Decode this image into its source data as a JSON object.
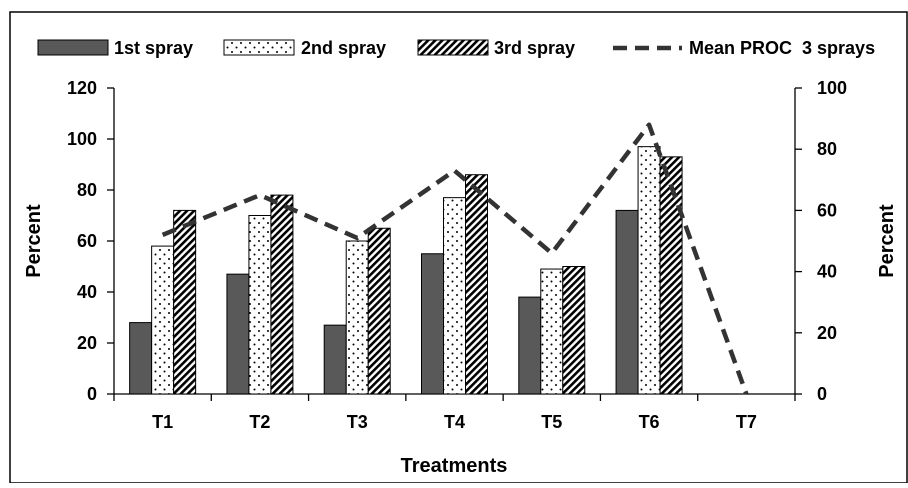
{
  "chart_data": {
    "type": "bar",
    "categories": [
      "T1",
      "T2",
      "T3",
      "T4",
      "T5",
      "T6",
      "T7"
    ],
    "series": [
      {
        "name": "1st spray",
        "kind": "bar",
        "axis": "left",
        "pattern": "solid",
        "color": "#595959",
        "values": [
          28,
          47,
          27,
          55,
          38,
          72,
          0
        ]
      },
      {
        "name": "2nd spray",
        "kind": "bar",
        "axis": "left",
        "pattern": "dots",
        "color": "#ffffff",
        "values": [
          58,
          70,
          60,
          77,
          49,
          97,
          0
        ]
      },
      {
        "name": "3rd spray",
        "kind": "bar",
        "axis": "left",
        "pattern": "diagonal",
        "color": "#000000",
        "values": [
          72,
          78,
          65,
          86,
          50,
          93,
          0
        ]
      },
      {
        "name": "Mean PROC  3 sprays",
        "kind": "line",
        "axis": "right",
        "style": "dashed",
        "color": "#333333",
        "values": [
          52,
          65,
          51,
          73,
          46,
          88,
          0
        ]
      }
    ],
    "xlabel": "Treatments",
    "ylabel": "Percent",
    "y2label": "Percent",
    "ylim": [
      0,
      120
    ],
    "y2lim": [
      0,
      100
    ],
    "yticks": [
      "0",
      "20",
      "40",
      "60",
      "80",
      "100",
      "120"
    ],
    "y2ticks": [
      "0",
      "20",
      "40",
      "60",
      "80",
      "100"
    ],
    "legend_position": "top",
    "grid": false
  }
}
